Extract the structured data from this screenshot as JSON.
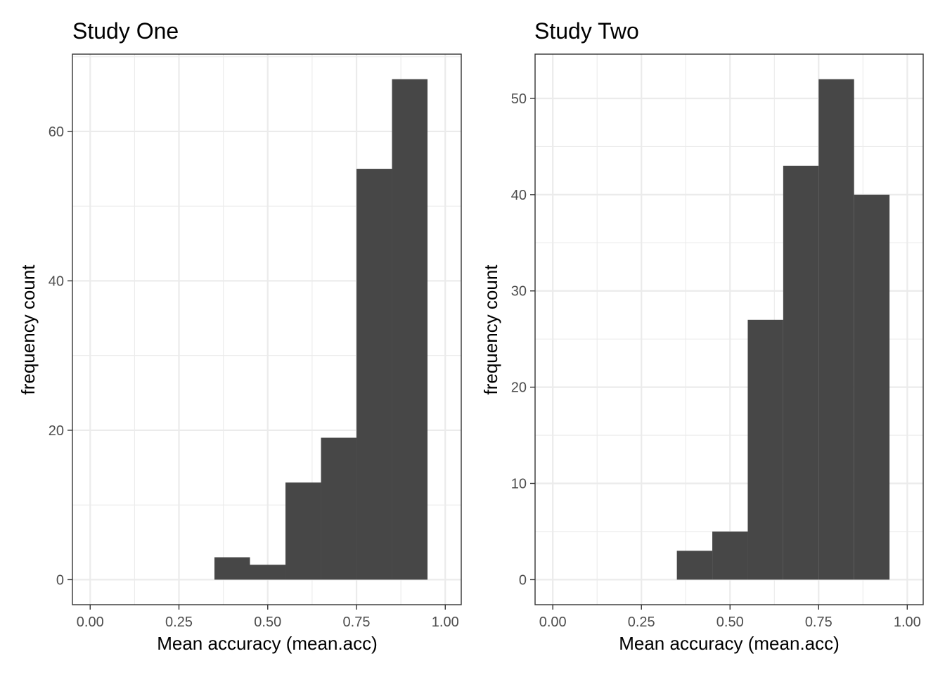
{
  "chart_data": [
    {
      "type": "bar",
      "title": "Study One",
      "xlabel": "Mean accuracy (mean.acc)",
      "ylabel": "frequency count",
      "xlim": [
        -0.05,
        1.045
      ],
      "ylim": [
        -3.35,
        70.35
      ],
      "xticks": [
        0.0,
        0.25,
        0.5,
        0.75,
        1.0
      ],
      "xtick_labels": [
        "0.00",
        "0.25",
        "0.50",
        "0.75",
        "1.00"
      ],
      "yticks": [
        0,
        20,
        40,
        60
      ],
      "ytick_labels": [
        "0",
        "20",
        "40",
        "60"
      ],
      "yminor": [
        10,
        30,
        50,
        70
      ],
      "grid": true,
      "bins": [
        {
          "x0": 0.35,
          "x1": 0.45,
          "count": 3
        },
        {
          "x0": 0.45,
          "x1": 0.55,
          "count": 2
        },
        {
          "x0": 0.55,
          "x1": 0.65,
          "count": 13
        },
        {
          "x0": 0.65,
          "x1": 0.75,
          "count": 19
        },
        {
          "x0": 0.75,
          "x1": 0.85,
          "count": 55
        },
        {
          "x0": 0.85,
          "x1": 0.95,
          "count": 67
        }
      ]
    },
    {
      "type": "bar",
      "title": "Study Two",
      "xlabel": "Mean accuracy (mean.acc)",
      "ylabel": "frequency count",
      "xlim": [
        -0.05,
        1.045
      ],
      "ylim": [
        -2.6,
        54.6
      ],
      "xticks": [
        0.0,
        0.25,
        0.5,
        0.75,
        1.0
      ],
      "xtick_labels": [
        "0.00",
        "0.25",
        "0.50",
        "0.75",
        "1.00"
      ],
      "yticks": [
        0,
        10,
        20,
        30,
        40,
        50
      ],
      "ytick_labels": [
        "0",
        "10",
        "20",
        "30",
        "40",
        "50"
      ],
      "yminor": [
        5,
        15,
        25,
        35,
        45
      ],
      "grid": true,
      "bins": [
        {
          "x0": 0.35,
          "x1": 0.45,
          "count": 3
        },
        {
          "x0": 0.45,
          "x1": 0.55,
          "count": 5
        },
        {
          "x0": 0.55,
          "x1": 0.65,
          "count": 27
        },
        {
          "x0": 0.65,
          "x1": 0.75,
          "count": 43
        },
        {
          "x0": 0.75,
          "x1": 0.85,
          "count": 52
        },
        {
          "x0": 0.85,
          "x1": 0.95,
          "count": 40
        }
      ]
    }
  ]
}
